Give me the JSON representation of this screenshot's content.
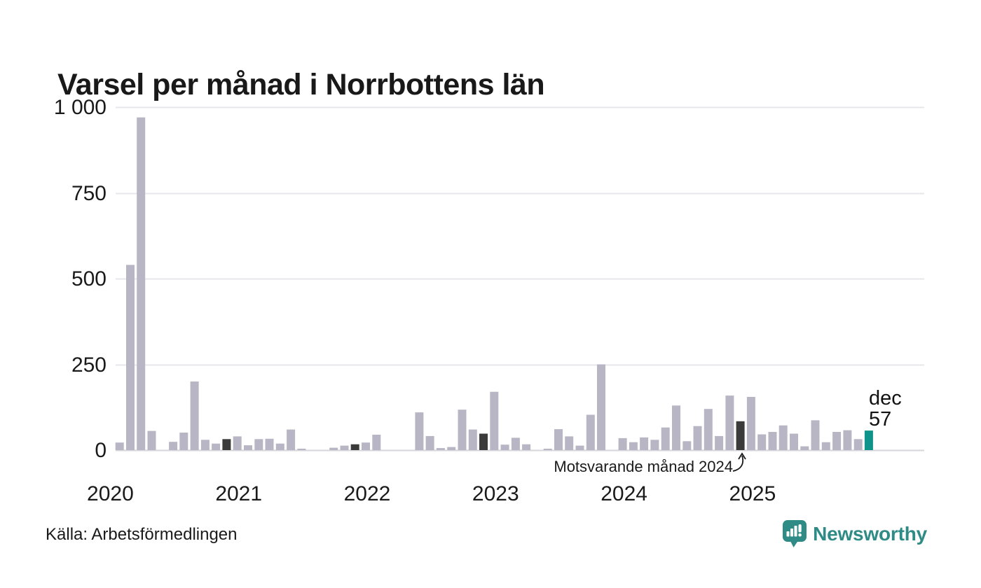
{
  "title": "Varsel per månad i Norrbottens län",
  "source": {
    "text": "Källa: Arbetsförmedlingen"
  },
  "annotation": {
    "text": "Motsvarande månad 2024"
  },
  "current_label": {
    "month": "dec",
    "value": "57"
  },
  "logo": {
    "wordmark": "Newsworthy",
    "icon": "newsworthy-speech-bubble-bar-chart-icon",
    "color": "#2f8b85"
  },
  "colors": {
    "bar": "#b8b6c4",
    "comparison_bar": "#3b3b3b",
    "current_bar": "#0e948a",
    "gridline": "#e7e7eb",
    "zero_line": "#d6d6db",
    "text": "#1a1a1a"
  },
  "chart_data": {
    "type": "bar",
    "title": "Varsel per månad i Norrbottens län",
    "xlabel": "",
    "ylabel": "",
    "ylim": [
      0,
      1000
    ],
    "grid": true,
    "yticks": [
      {
        "value": 0,
        "label": "0"
      },
      {
        "value": 250,
        "label": "250"
      },
      {
        "value": 500,
        "label": "500"
      },
      {
        "value": 750,
        "label": "750"
      },
      {
        "value": 1000,
        "label": "1 000"
      }
    ],
    "years": [
      2020,
      2021,
      2022,
      2023,
      2024,
      2025
    ],
    "series": [
      {
        "year": 2020,
        "values": [
          0,
          22,
          540,
          970,
          56,
          0,
          24,
          51,
          200,
          30,
          19,
          32
        ]
      },
      {
        "year": 2021,
        "values": [
          40,
          14,
          32,
          33,
          19,
          60,
          4,
          0,
          0,
          7,
          13,
          17
        ]
      },
      {
        "year": 2022,
        "values": [
          22,
          45,
          0,
          0,
          0,
          110,
          41,
          6,
          9,
          118,
          60,
          48
        ]
      },
      {
        "year": 2023,
        "values": [
          170,
          16,
          36,
          17,
          0,
          4,
          61,
          40,
          13,
          103,
          250,
          0
        ]
      },
      {
        "year": 2024,
        "values": [
          35,
          23,
          37,
          30,
          66,
          130,
          26,
          70,
          120,
          41,
          159,
          84
        ]
      },
      {
        "year": 2025,
        "values": [
          155,
          46,
          53,
          72,
          48,
          11,
          87,
          23,
          53,
          58,
          32,
          57
        ]
      }
    ],
    "highlight": {
      "current": {
        "year": 2025,
        "month_label": "dec",
        "month_index": 11,
        "value": 57
      },
      "comparison": {
        "month_index": 11,
        "years": [
          2020,
          2021,
          2022,
          2023,
          2024
        ],
        "note": "Motsvarande månad 2024"
      }
    }
  }
}
